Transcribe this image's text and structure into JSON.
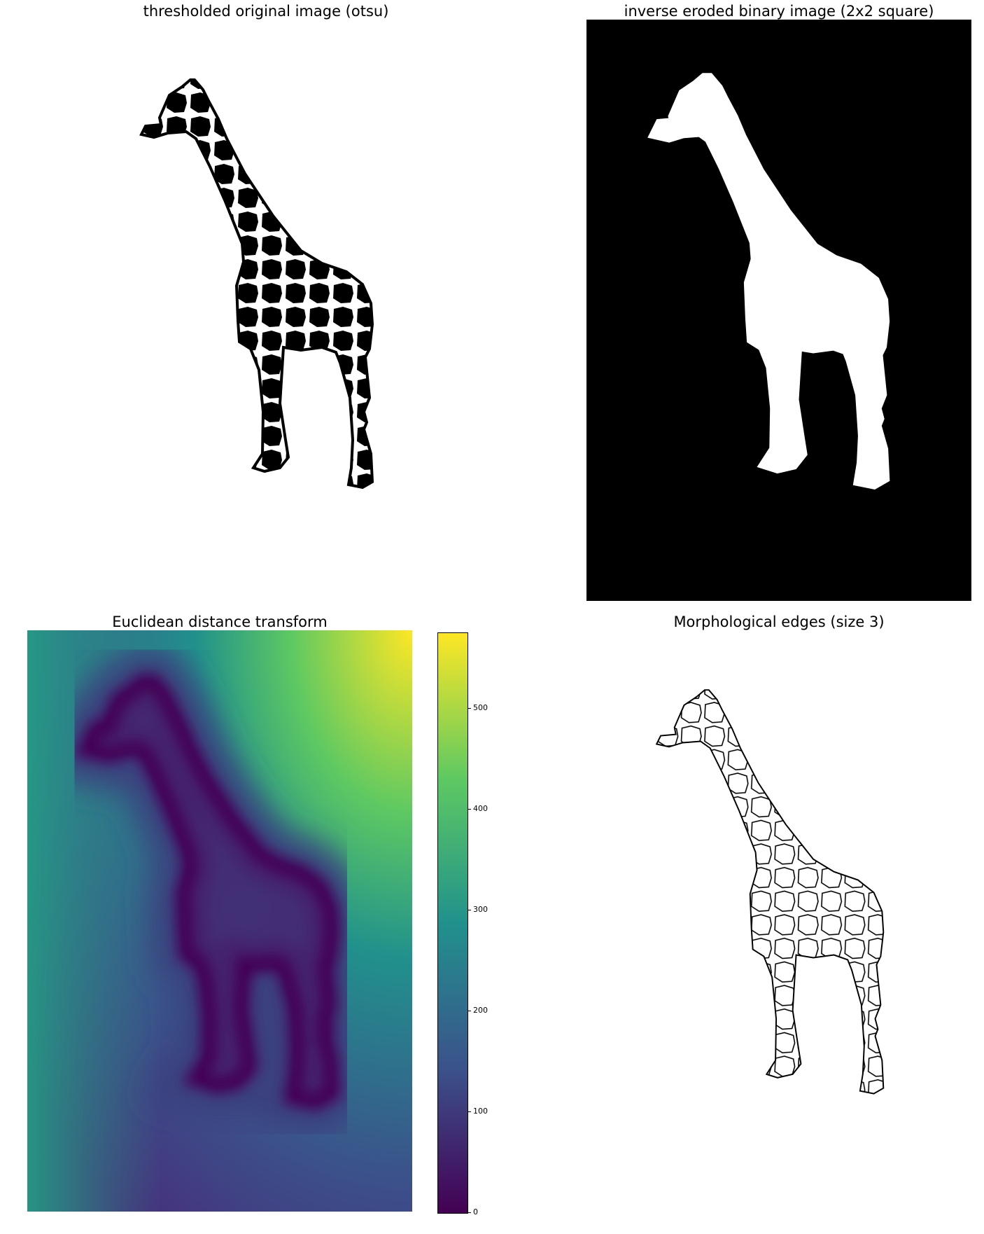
{
  "panels": [
    {
      "title": "thresholded original image (otsu)",
      "kind": "otsu-threshold"
    },
    {
      "title": "inverse eroded binary image (2x2 square)",
      "kind": "eroded-mask"
    },
    {
      "title": "Euclidean distance transform",
      "kind": "distance-transform"
    },
    {
      "title": "Morphological edges (size 3)",
      "kind": "edges"
    }
  ],
  "colorbar": {
    "ticks": [
      "0",
      "100",
      "200",
      "300",
      "400",
      "500"
    ],
    "min": 0,
    "max": 575,
    "colors": [
      "#440154",
      "#3b528b",
      "#21918c",
      "#5ec962",
      "#fde725"
    ]
  }
}
